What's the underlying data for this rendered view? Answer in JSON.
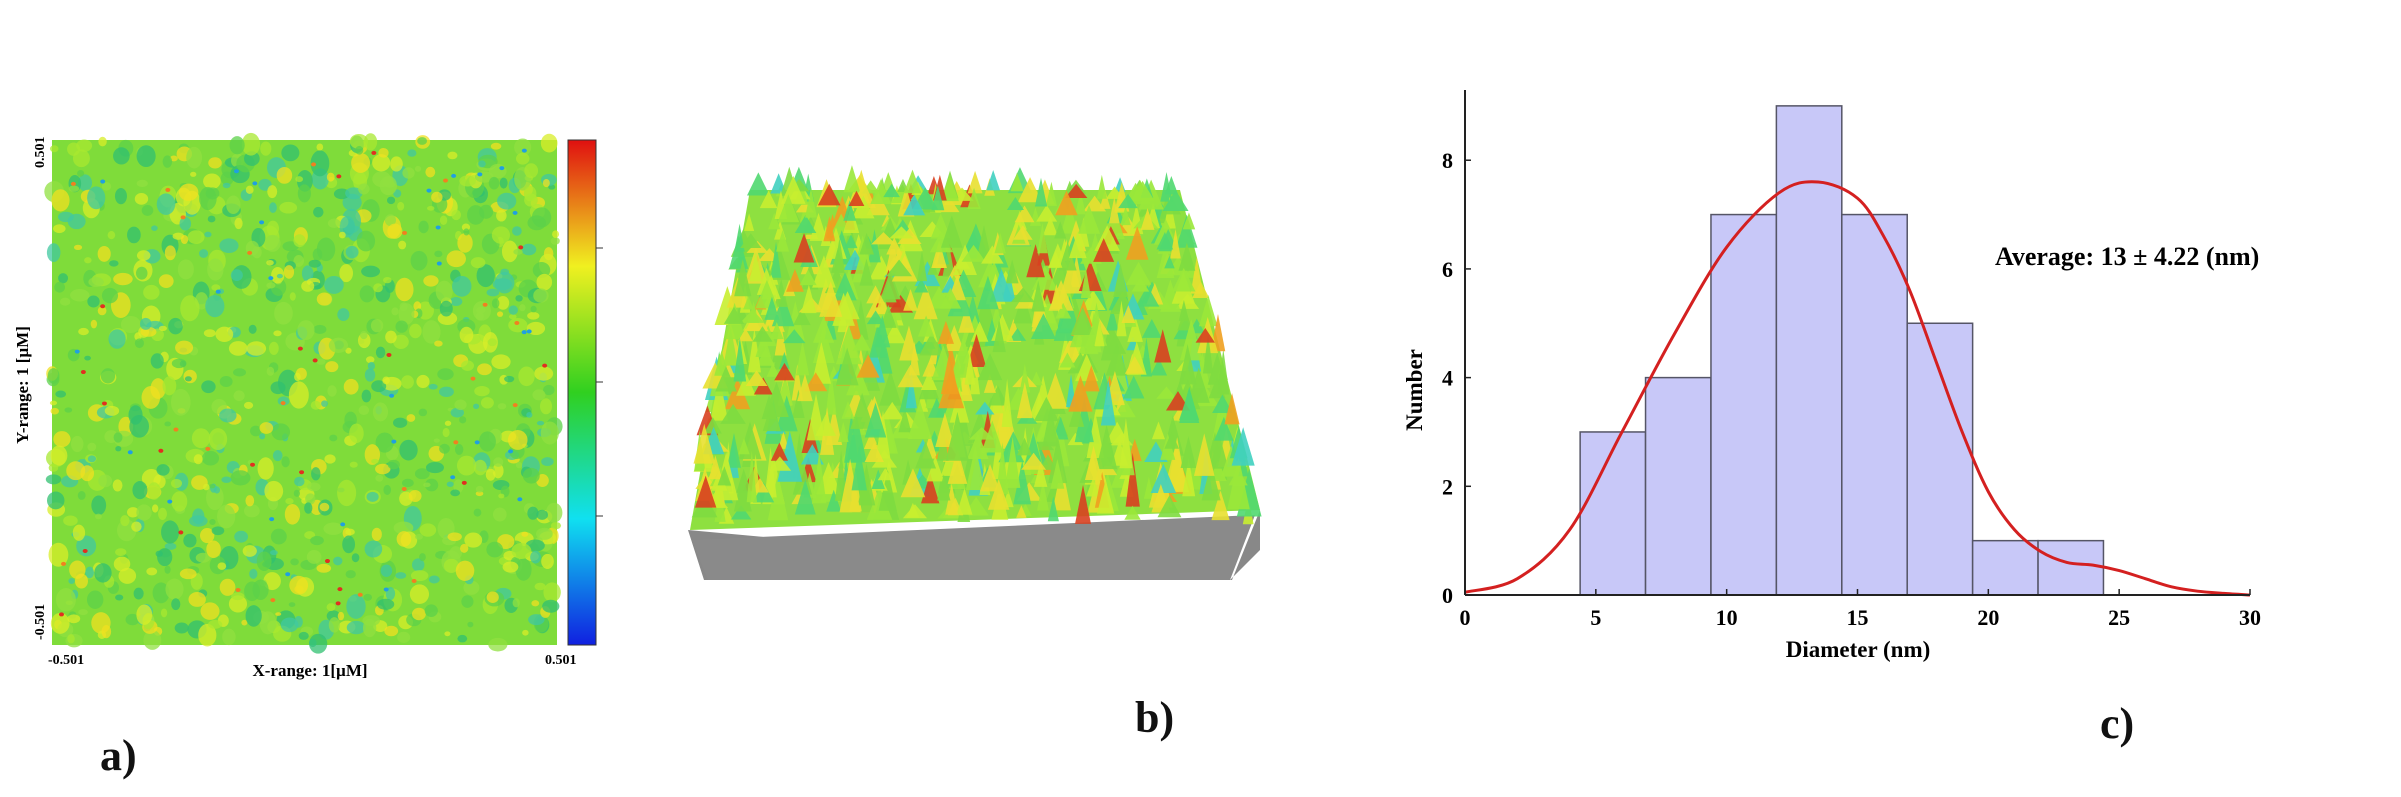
{
  "panels": {
    "a": {
      "label": "a)",
      "xlabel": "X-range: 1[µM]",
      "ylabel": "Y-range: 1 [µM]",
      "x_min": "-0.501",
      "x_max": "0.501",
      "y_min": "-0.501",
      "y_max": "0.501"
    },
    "b": {
      "label": "b)"
    },
    "c": {
      "label": "c)"
    }
  },
  "chart_data": {
    "type": "bar",
    "xlabel": "Diameter (nm)",
    "ylabel": "Number",
    "annotation": "Average: 13 ± 4.22 (nm)",
    "xlim": [
      0,
      30
    ],
    "ylim": [
      0,
      9.2
    ],
    "xticks": [
      0,
      5,
      10,
      15,
      20,
      25,
      30
    ],
    "yticks": [
      0,
      2,
      4,
      6,
      8
    ],
    "bins": [
      {
        "x0": 4.4,
        "x1": 6.9,
        "value": 3
      },
      {
        "x0": 6.9,
        "x1": 9.4,
        "value": 4
      },
      {
        "x0": 9.4,
        "x1": 11.9,
        "value": 7
      },
      {
        "x0": 11.9,
        "x1": 14.4,
        "value": 9
      },
      {
        "x0": 14.4,
        "x1": 16.9,
        "value": 7
      },
      {
        "x0": 16.9,
        "x1": 19.4,
        "value": 5
      },
      {
        "x0": 19.4,
        "x1": 21.9,
        "value": 1
      },
      {
        "x0": 21.9,
        "x1": 24.4,
        "value": 1
      }
    ],
    "fit_curve": {
      "x": [
        0,
        2,
        4,
        6,
        8,
        10,
        12,
        13.5,
        15,
        16,
        17,
        18,
        19,
        20,
        21,
        22,
        23,
        24,
        25,
        26,
        27,
        28,
        29,
        30
      ],
      "y": [
        0.05,
        0.3,
        1.2,
        3.0,
        4.8,
        6.4,
        7.4,
        7.6,
        7.3,
        6.6,
        5.6,
        4.3,
        3.0,
        1.9,
        1.2,
        0.8,
        0.6,
        0.55,
        0.45,
        0.3,
        0.15,
        0.07,
        0.03,
        0.0
      ]
    },
    "colors": {
      "bar": "#c8c8f8",
      "bar_edge": "#555566",
      "curve": "#d42020"
    }
  }
}
